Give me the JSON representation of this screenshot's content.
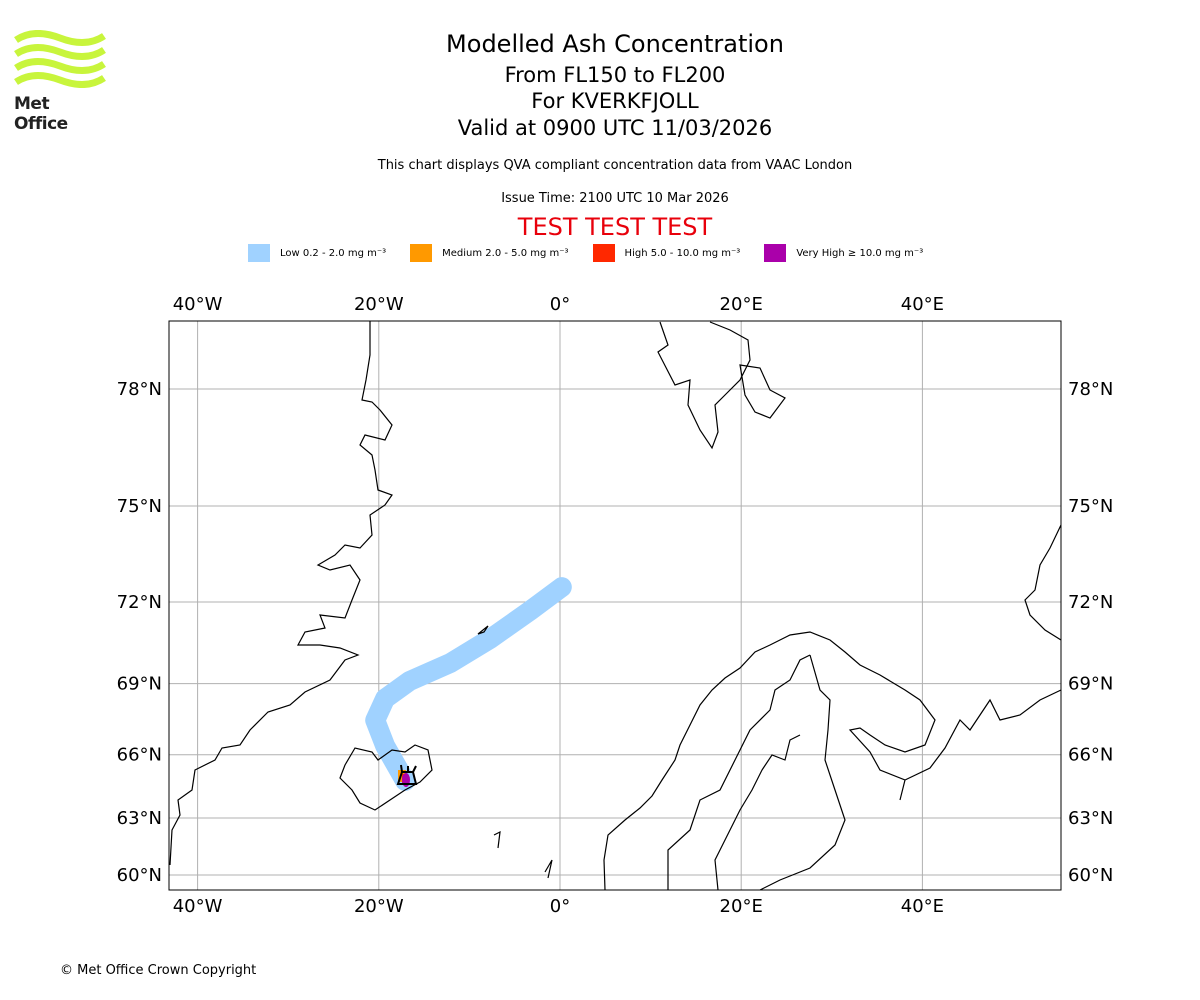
{
  "header": {
    "title": "Modelled Ash Concentration",
    "level": "From FL150 to FL200",
    "volcano": "For KVERKFJOLL",
    "valid": "Valid at 0900 UTC 11/03/2026",
    "description": "This chart displays QVA compliant concentration data from VAAC London",
    "issue": "Issue Time: 2100 UTC 10 Mar 2026",
    "test_banner": "TEST TEST TEST"
  },
  "logo": {
    "text": "Met Office"
  },
  "footer": {
    "copyright": "© Met Office Crown Copyright"
  },
  "chart_data": {
    "type": "map",
    "title": "Modelled Ash Concentration",
    "legend": [
      {
        "label": "Low 0.2 - 2.0 mg m⁻³",
        "color": "#a0d2ff"
      },
      {
        "label": "Medium 2.0 - 5.0 mg m⁻³",
        "color": "#ff9900"
      },
      {
        "label": "High 5.0 - 10.0 mg m⁻³",
        "color": "#ff2800"
      },
      {
        "label": "Very High ≥ 10.0 mg m⁻³",
        "color": "#aa00aa"
      }
    ],
    "lon_ticks": [
      {
        "v": -40,
        "label": "40°W"
      },
      {
        "v": -20,
        "label": "20°W"
      },
      {
        "v": 0,
        "label": "0°"
      },
      {
        "v": 20,
        "label": "20°E"
      },
      {
        "v": 40,
        "label": "40°E"
      }
    ],
    "lat_ticks": [
      {
        "v": 78,
        "label": "78°N"
      },
      {
        "v": 75,
        "label": "75°N"
      },
      {
        "v": 72,
        "label": "72°N"
      },
      {
        "v": 69,
        "label": "69°N"
      },
      {
        "v": 66,
        "label": "66°N"
      },
      {
        "v": 63,
        "label": "63°N"
      },
      {
        "v": 60,
        "label": "60°N"
      }
    ],
    "xlim": [
      -43,
      55
    ],
    "ylim": [
      59.5,
      79.5
    ],
    "grid": true,
    "volcano": {
      "name": "KVERKFJOLL",
      "lat": 64.65,
      "lon": -16.7
    },
    "plume_low_centerline": [
      [
        64.8,
        -17.1
      ],
      [
        66.4,
        -19.3
      ],
      [
        67.5,
        -20.4
      ],
      [
        68.4,
        -19.3
      ],
      [
        69.1,
        -16.6
      ],
      [
        69.8,
        -12.1
      ],
      [
        70.7,
        -7.7
      ],
      [
        71.7,
        -3.3
      ],
      [
        72.5,
        0.2
      ]
    ]
  }
}
